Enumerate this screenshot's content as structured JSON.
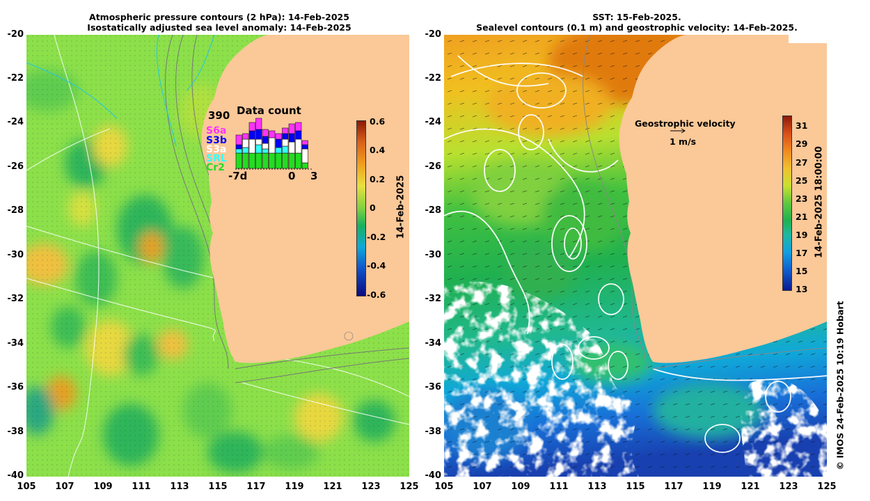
{
  "left_panel": {
    "title_line1": "Atmospheric pressure contours (2 hPa): 14-Feb-2025",
    "title_line2": "Isostatically adjusted sea level anomaly: 14-Feb-2025",
    "colorbar": {
      "ticks": [
        "0.6",
        "0.4",
        "0.2",
        "0",
        "-0.2",
        "-0.4",
        "-0.6"
      ],
      "label": "14-Feb-2025",
      "range": [
        -0.6,
        0.6
      ]
    },
    "data_count": {
      "title": "Data count",
      "max_value": "390",
      "satellites": [
        "S6a",
        "S3b",
        "S3a",
        "SRL",
        "Cr2"
      ],
      "satellite_colors": [
        "#ff33ff",
        "#0000ff",
        "#ffffff",
        "#33ffff",
        "#22dd22"
      ],
      "x_ticks": [
        "-7d",
        "0",
        "3"
      ]
    }
  },
  "right_panel": {
    "title_line1": "SST: 15-Feb-2025.",
    "title_line2": "Sealevel contours (0.1 m) and geostrophic velocity: 14-Feb-2025.",
    "velocity_legend": {
      "title": "Geostrophic velocity",
      "scale": "1 m/s"
    },
    "colorbar": {
      "ticks": [
        "31",
        "29",
        "27",
        "25",
        "23",
        "21",
        "19",
        "17",
        "15",
        "13"
      ],
      "label": "14-Feb-2025 18:00:00",
      "range": [
        13,
        32
      ]
    }
  },
  "axes": {
    "y_ticks": [
      "-20",
      "-22",
      "-24",
      "-26",
      "-28",
      "-30",
      "-32",
      "-34",
      "-36",
      "-38",
      "-40"
    ],
    "x_ticks": [
      "105",
      "107",
      "109",
      "111",
      "113",
      "115",
      "117",
      "119",
      "121",
      "123",
      "125"
    ]
  },
  "credit": "© IMOS 24-Feb-2025 10:19 Hobart",
  "colors": {
    "land": "#fbc898",
    "anomaly_base": "#8ce04a"
  }
}
